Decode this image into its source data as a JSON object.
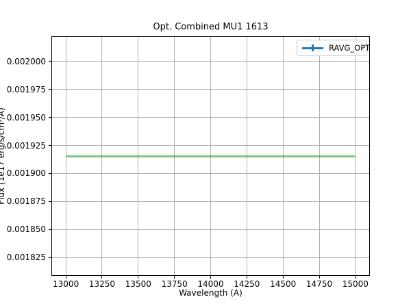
{
  "figure": {
    "background": "#ffffff"
  },
  "chart_data": {
    "type": "line",
    "title": "Opt. Combined MU1 1613",
    "xlabel": "Wavelength (A)",
    "ylabel": "Flux (1e17 erg/s/cm²/A)",
    "xlim": [
      12900,
      15100
    ],
    "ylim": [
      0.0018085,
      0.0020226
    ],
    "grid": true,
    "grid_color": "#b0b0b0",
    "x_tick_values": [
      13000,
      13250,
      13500,
      13750,
      14000,
      14250,
      14500,
      14750,
      15000
    ],
    "x_tick_labels": [
      "13000",
      "13250",
      "13500",
      "13750",
      "14000",
      "14250",
      "14500",
      "14750",
      "15000"
    ],
    "y_tick_values": [
      0.002,
      0.001975,
      0.00195,
      0.001925,
      0.0019,
      0.001875,
      0.00185,
      0.001825
    ],
    "y_tick_labels": [
      "0.002000",
      "0.001975",
      "0.001950",
      "0.001925",
      "0.001900",
      "0.001875",
      "0.001850",
      "0.001825"
    ],
    "series": [
      {
        "name": "RAVG_OPT",
        "style": "errorbar-line",
        "line_color": "rgba(44,160,44,0.6)",
        "x": [
          13000,
          15000
        ],
        "y": [
          0.001916,
          0.001916
        ]
      }
    ],
    "legend": {
      "position": "upper right",
      "entries": [
        {
          "label": "RAVG_OPT",
          "handle": "errorbar",
          "handle_color": "#1f77b4"
        }
      ]
    }
  }
}
